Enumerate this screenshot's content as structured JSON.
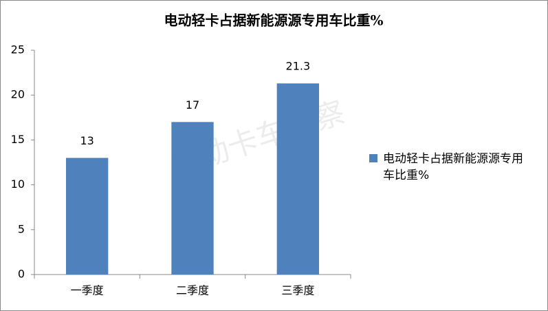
{
  "chart_data": {
    "type": "bar",
    "title": "电动轻卡占据新能源源专用车比重%",
    "categories": [
      "一季度",
      "二季度",
      "三季度"
    ],
    "series": [
      {
        "name": "电动轻卡占据新能源源专用车比重%",
        "color": "#4f81bd",
        "values": [
          13,
          17,
          21.3
        ]
      }
    ],
    "ylim": [
      0,
      25
    ],
    "yticks": [
      0,
      5,
      10,
      15,
      20,
      25
    ],
    "grid": false,
    "legend": "right",
    "watermark": "电动卡车观察"
  }
}
